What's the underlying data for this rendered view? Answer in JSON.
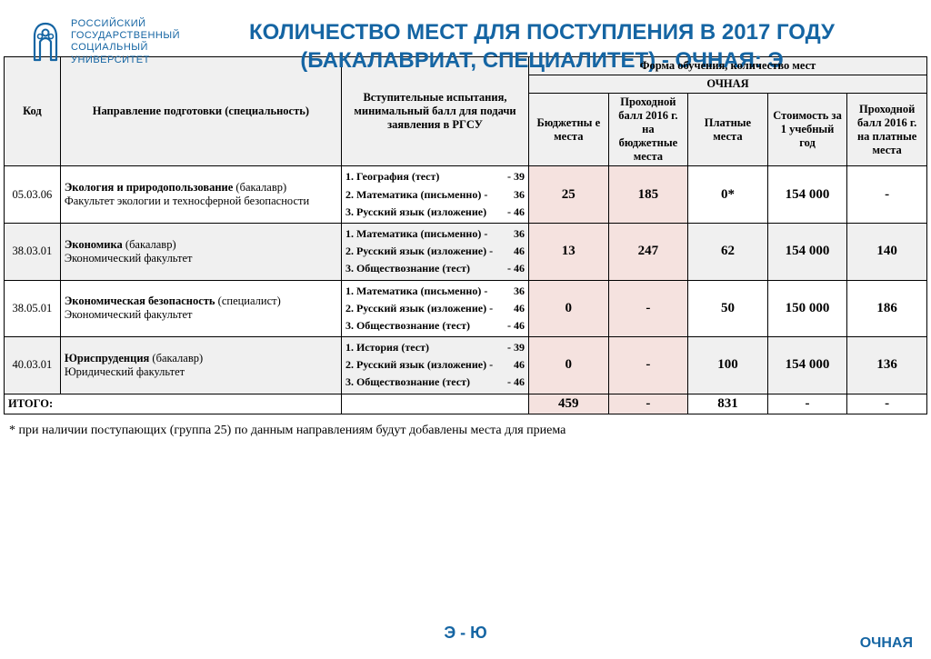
{
  "brand": {
    "line1": "РОССИЙСКИЙ",
    "line2": "ГОСУДАРСТВЕННЫЙ",
    "line3": "СОЦИАЛЬНЫЙ",
    "line4": "УНИВЕРСИТЕТ",
    "color": "#1565a3"
  },
  "title": {
    "line1": "КОЛИЧЕСТВО МЕСТ ДЛЯ ПОСТУПЛЕНИЯ В 2017 ГОДУ",
    "line2": "(БАКАЛАВРИАТ, СПЕЦИАЛИТЕТ) - ОЧНАЯ: Э"
  },
  "headers": {
    "code": "Код",
    "direction": "Направление подготовки (специальность)",
    "exams": "Вступительные испытания, минимальный балл для подачи заявления в РГСУ",
    "form_group": "Форма обучения, количество мест",
    "form_sub": "ОЧНАЯ",
    "budget": "Бюджетны е места",
    "pass_budget": "Проходной балл 2016 г. на бюджетные места",
    "paid": "Платные места",
    "cost": "Стоимость за 1 учебный год",
    "pass_paid": "Проходной балл 2016 г. на платные места"
  },
  "rows": [
    {
      "code": "05.03.06",
      "name": "Экология и природопользование",
      "degree": "(бакалавр)",
      "faculty": "Факультет экологии и техносферной безопасности",
      "exams": [
        {
          "n": "1.",
          "t": "География (тест)",
          "s": "- 39"
        },
        {
          "n": "2.",
          "t": "Математика (письменно) -",
          "s": "36"
        },
        {
          "n": "3.",
          "t": "Русский язык (изложение)",
          "s": "- 46"
        }
      ],
      "budget": "25",
      "pass_budget": "185",
      "paid": "0*",
      "cost": "154 000",
      "pass_paid": "-"
    },
    {
      "code": "38.03.01",
      "name": "Экономика",
      "degree": "(бакалавр)",
      "faculty": "Экономический факультет",
      "exams": [
        {
          "n": "1.",
          "t": "Математика (письменно) -",
          "s": "36"
        },
        {
          "n": "2.",
          "t": "Русский язык (изложение) -",
          "s": "46"
        },
        {
          "n": "3.",
          "t": "Обществознание  (тест)",
          "s": "- 46"
        }
      ],
      "budget": "13",
      "pass_budget": "247",
      "paid": "62",
      "cost": "154 000",
      "pass_paid": "140"
    },
    {
      "code": "38.05.01",
      "name": "Экономическая безопасность",
      "degree": "(специалист)",
      "faculty": "Экономический факультет",
      "exams": [
        {
          "n": "1.",
          "t": "Математика (письменно) -",
          "s": "36"
        },
        {
          "n": "2.",
          "t": "Русский язык (изложение) -",
          "s": "46"
        },
        {
          "n": "3.",
          "t": "Обществознание  (тест)",
          "s": "- 46"
        }
      ],
      "budget": "0",
      "pass_budget": "-",
      "paid": "50",
      "cost": "150 000",
      "pass_paid": "186"
    },
    {
      "code": "40.03.01",
      "name": "Юриспруденция",
      "degree": "(бакалавр)",
      "faculty": "Юридический факультет",
      "exams": [
        {
          "n": "1.",
          "t": "История (тест)",
          "s": "- 39"
        },
        {
          "n": "2.",
          "t": "Русский язык (изложение) -",
          "s": "46"
        },
        {
          "n": "3.",
          "t": "Обществознание  (тест)",
          "s": "- 46"
        }
      ],
      "budget": "0",
      "pass_budget": "-",
      "paid": "100",
      "cost": "154 000",
      "pass_paid": "136"
    }
  ],
  "totals": {
    "label": "ИТОГО:",
    "budget": "459",
    "pass_budget": "-",
    "paid": "831",
    "cost": "-",
    "pass_paid": "-"
  },
  "footnote": "* при наличии поступающих (группа 25) по данным направлениям будут добавлены места для приема",
  "bottom_center": "Э - Ю",
  "bottom_right": "ОЧНАЯ",
  "colors": {
    "pink": "#f5e2df",
    "gray": "#f0f0f0",
    "accent": "#1565a3"
  }
}
